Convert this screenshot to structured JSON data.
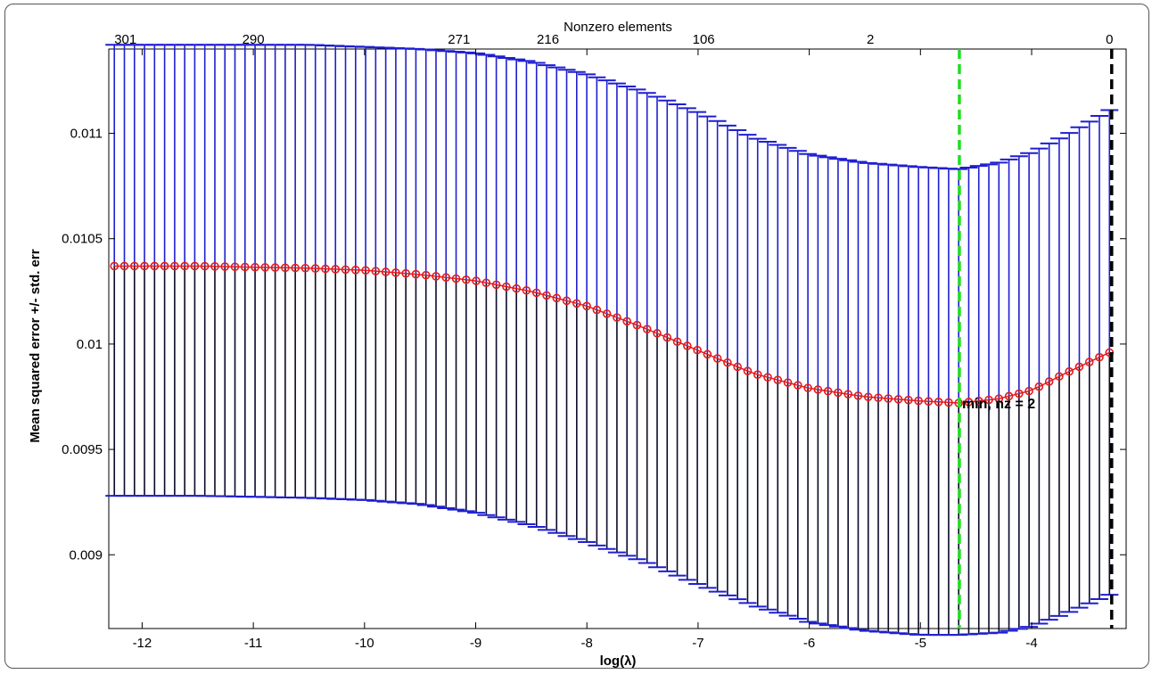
{
  "chart_data": {
    "type": "scatter",
    "title": "",
    "xlabel": "log(λ)",
    "ylabel": "Mean squared error +/- std. err",
    "top_axis_label": "Nonzero elements",
    "xlim": [
      -12.3,
      -3.15
    ],
    "ylim": [
      0.00865,
      0.0114
    ],
    "x_ticks": [
      -12,
      -11,
      -10,
      -9,
      -8,
      -7,
      -6,
      -5,
      -4
    ],
    "y_ticks": [
      0.009,
      0.0095,
      0.01,
      0.0105,
      0.011
    ],
    "y_tick_labels": [
      "0.009",
      "0.0095",
      "0.01",
      "0.0105",
      "0.011"
    ],
    "top_ticks": [
      {
        "x": -12.15,
        "label": "301"
      },
      {
        "x": -11.0,
        "label": "290"
      },
      {
        "x": -9.15,
        "label": "271"
      },
      {
        "x": -8.35,
        "label": "216"
      },
      {
        "x": -6.95,
        "label": "106"
      },
      {
        "x": -5.45,
        "label": "2"
      },
      {
        "x": -3.3,
        "label": "0"
      }
    ],
    "lambda_min_x": -4.65,
    "lambda_1se_x": -3.28,
    "annotation": "min, nz = 2",
    "x_start": -12.25,
    "x_end": -3.3,
    "n_points": 100,
    "mean_curve": [
      [
        -12.25,
        0.01037
      ],
      [
        -11.5,
        0.01037
      ],
      [
        -10.5,
        0.01036
      ],
      [
        -10.0,
        0.01035
      ],
      [
        -9.5,
        0.01033
      ],
      [
        -9.0,
        0.0103
      ],
      [
        -8.5,
        0.01025
      ],
      [
        -8.0,
        0.01018
      ],
      [
        -7.5,
        0.01008
      ],
      [
        -7.0,
        0.00997
      ],
      [
        -6.5,
        0.00986
      ],
      [
        -6.0,
        0.00979
      ],
      [
        -5.5,
        0.00975
      ],
      [
        -5.0,
        0.00973
      ],
      [
        -4.65,
        0.00972
      ],
      [
        -4.3,
        0.00974
      ],
      [
        -4.0,
        0.00978
      ],
      [
        -3.7,
        0.00986
      ],
      [
        -3.3,
        0.00996
      ]
    ],
    "upper_curve": [
      [
        -12.25,
        0.01142
      ],
      [
        -11.5,
        0.01142
      ],
      [
        -10.5,
        0.01142
      ],
      [
        -10.0,
        0.01141
      ],
      [
        -9.5,
        0.0114
      ],
      [
        -9.0,
        0.01138
      ],
      [
        -8.5,
        0.01134
      ],
      [
        -8.0,
        0.01128
      ],
      [
        -7.5,
        0.0112
      ],
      [
        -7.0,
        0.0111
      ],
      [
        -6.5,
        0.01098
      ],
      [
        -6.0,
        0.0109
      ],
      [
        -5.5,
        0.01086
      ],
      [
        -5.0,
        0.01084
      ],
      [
        -4.65,
        0.01083
      ],
      [
        -4.3,
        0.01086
      ],
      [
        -4.0,
        0.01091
      ],
      [
        -3.7,
        0.01099
      ],
      [
        -3.3,
        0.01111
      ]
    ],
    "lower_curve": [
      [
        -12.25,
        0.00928
      ],
      [
        -11.5,
        0.00928
      ],
      [
        -10.5,
        0.00927
      ],
      [
        -10.0,
        0.00926
      ],
      [
        -9.5,
        0.00924
      ],
      [
        -9.0,
        0.0092
      ],
      [
        -8.5,
        0.00914
      ],
      [
        -8.0,
        0.00906
      ],
      [
        -7.5,
        0.00897
      ],
      [
        -7.0,
        0.00886
      ],
      [
        -6.5,
        0.00876
      ],
      [
        -6.0,
        0.00868
      ],
      [
        -5.5,
        0.00864
      ],
      [
        -5.0,
        0.00862
      ],
      [
        -4.65,
        0.00862
      ],
      [
        -4.3,
        0.00863
      ],
      [
        -4.0,
        0.00866
      ],
      [
        -3.7,
        0.00872
      ],
      [
        -3.3,
        0.00881
      ]
    ],
    "grid": false,
    "colors": {
      "mean_marker": "#e41a1c",
      "error_bar_upper": "#1f1fd0",
      "error_bar_lower": "#0a0a28",
      "lambda_min_line": "#22dd22",
      "lambda_1se_line": "#000000",
      "axis": "#000000"
    }
  }
}
